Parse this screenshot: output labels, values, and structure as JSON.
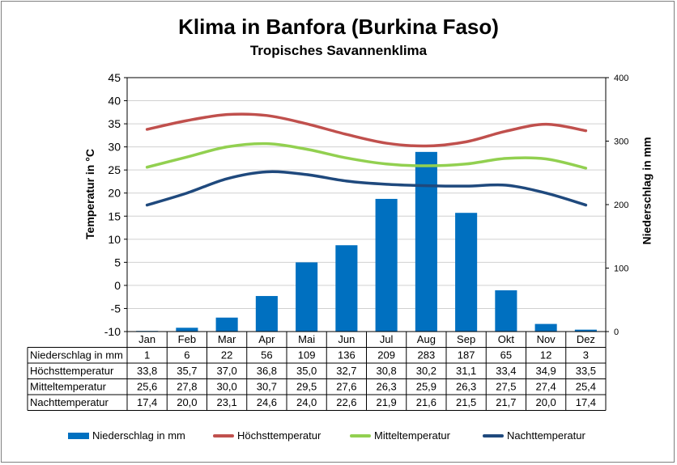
{
  "chart_data": {
    "type": "bar+line",
    "title": "Klima in Banfora (Burkina Faso)",
    "subtitle": "Tropisches Savannenklima",
    "ylabel_left": "Temperatur in °C",
    "ylabel_right": "Niederschlag in mm",
    "ylim_left": [
      -10,
      45
    ],
    "yticks_left": [
      -10,
      -5,
      0,
      5,
      10,
      15,
      20,
      25,
      30,
      35,
      40,
      45
    ],
    "ylim_right": [
      0,
      400
    ],
    "yticks_right": [
      0,
      100,
      200,
      300,
      400
    ],
    "categories": [
      "Jan",
      "Feb",
      "Mar",
      "Apr",
      "Mai",
      "Jun",
      "Jul",
      "Aug",
      "Sep",
      "Okt",
      "Nov",
      "Dez"
    ],
    "legend_position": "bottom",
    "series": [
      {
        "name": "Niederschlag in mm",
        "type": "bar",
        "axis": "right",
        "color": "#0070c0",
        "values": [
          1,
          6,
          22,
          56,
          109,
          136,
          209,
          283,
          187,
          65,
          12,
          3
        ],
        "labels": [
          "1",
          "6",
          "22",
          "56",
          "109",
          "136",
          "209",
          "283",
          "187",
          "65",
          "12",
          "3"
        ]
      },
      {
        "name": "Höchsttemperatur",
        "type": "line",
        "axis": "left",
        "color": "#c0504d",
        "values": [
          33.8,
          35.7,
          37.0,
          36.8,
          35.0,
          32.7,
          30.8,
          30.2,
          31.1,
          33.4,
          34.9,
          33.5
        ],
        "labels": [
          "33,8",
          "35,7",
          "37,0",
          "36,8",
          "35,0",
          "32,7",
          "30,8",
          "30,2",
          "31,1",
          "33,4",
          "34,9",
          "33,5"
        ]
      },
      {
        "name": "Mitteltemperatur",
        "type": "line",
        "axis": "left",
        "color": "#92d050",
        "values": [
          25.6,
          27.8,
          30.0,
          30.7,
          29.5,
          27.6,
          26.3,
          25.9,
          26.3,
          27.5,
          27.4,
          25.4
        ],
        "labels": [
          "25,6",
          "27,8",
          "30,0",
          "30,7",
          "29,5",
          "27,6",
          "26,3",
          "25,9",
          "26,3",
          "27,5",
          "27,4",
          "25,4"
        ]
      },
      {
        "name": "Nachttemperatur",
        "type": "line",
        "axis": "left",
        "color": "#1f497d",
        "values": [
          17.4,
          20.0,
          23.1,
          24.6,
          24.0,
          22.6,
          21.9,
          21.6,
          21.5,
          21.7,
          20.0,
          17.4
        ],
        "labels": [
          "17,4",
          "20,0",
          "23,1",
          "24,6",
          "24,0",
          "22,6",
          "21,9",
          "21,6",
          "21,5",
          "21,7",
          "20,0",
          "17,4"
        ]
      }
    ]
  }
}
